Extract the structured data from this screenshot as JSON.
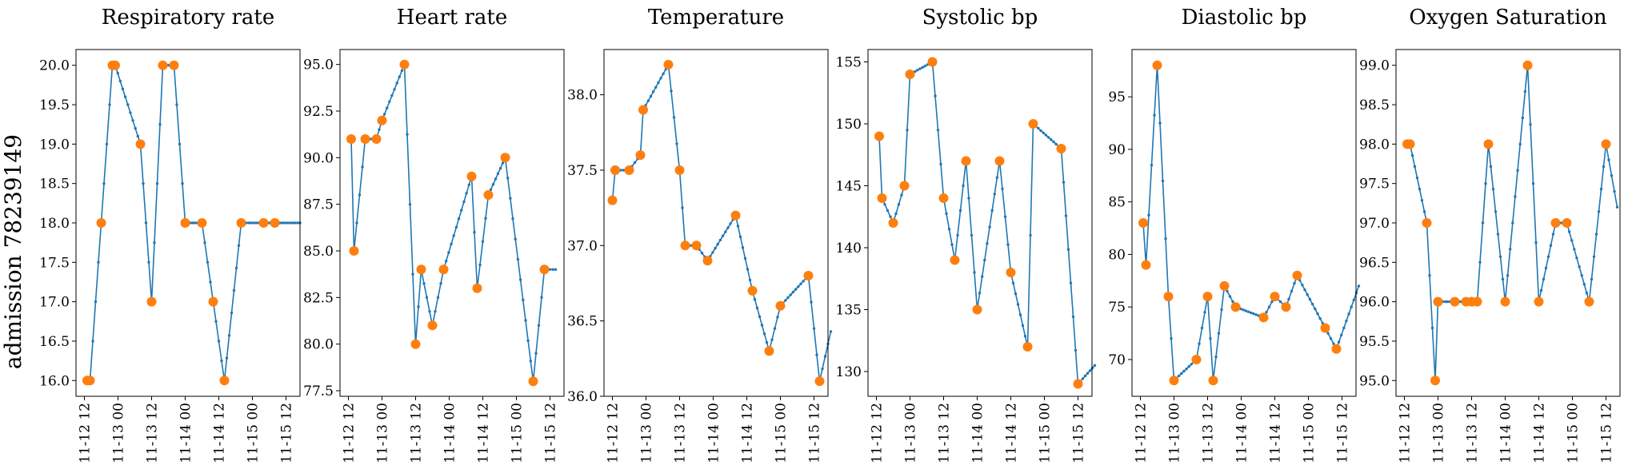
{
  "figure_ylabel": "admission 78239149",
  "colors": {
    "line": "#1f77b4",
    "marker": "#ff7f0e"
  },
  "x_ticks": [
    "11-12 12",
    "11-13 00",
    "11-13 12",
    "11-14 00",
    "11-14 12",
    "11-15 00",
    "11-15 12"
  ],
  "chart_data": [
    {
      "type": "line",
      "title": "Respiratory rate",
      "x_range": [
        "11-12 09:00",
        "11-15 17:00"
      ],
      "ylim": [
        15.8,
        20.2
      ],
      "y_ticks": [
        "16.0",
        "16.5",
        "17.0",
        "17.5",
        "18.0",
        "18.5",
        "19.0",
        "19.5",
        "20.0"
      ],
      "series": [
        {
          "x": [
            "11-12 13:00",
            "11-12 14:00",
            "11-12 18:00",
            "11-12 22:00",
            "11-12 23:00",
            "11-13 08:00",
            "11-13 12:00",
            "11-13 16:00",
            "11-13 20:00",
            "11-14 00:00",
            "11-14 06:00",
            "11-14 10:00",
            "11-14 14:00",
            "11-14 20:00",
            "11-15 04:00",
            "11-15 08:00",
            "11-15 17:00"
          ],
          "y": [
            16,
            16,
            18,
            20,
            20,
            19,
            17,
            20,
            20,
            18,
            18,
            17,
            16,
            18,
            18,
            18,
            18
          ],
          "marked": [
            true,
            true,
            true,
            true,
            true,
            true,
            true,
            true,
            true,
            true,
            true,
            true,
            true,
            true,
            true,
            true,
            false
          ]
        }
      ]
    },
    {
      "type": "line",
      "title": "Heart rate",
      "x_range": [
        "11-12 09:00",
        "11-15 17:00"
      ],
      "ylim": [
        77.2,
        95.8
      ],
      "y_ticks": [
        "77.5",
        "80.0",
        "82.5",
        "85.0",
        "87.5",
        "90.0",
        "92.5",
        "95.0"
      ],
      "series": [
        {
          "x": [
            "11-12 13:00",
            "11-12 14:00",
            "11-12 18:00",
            "11-12 22:00",
            "11-13 00:00",
            "11-13 08:00",
            "11-13 12:00",
            "11-13 14:00",
            "11-13 18:00",
            "11-13 22:00",
            "11-14 08:00",
            "11-14 10:00",
            "11-14 14:00",
            "11-14 20:00",
            "11-15 06:00",
            "11-15 10:00",
            "11-15 14:00"
          ],
          "y": [
            91,
            85,
            91,
            91,
            92,
            95,
            80,
            84,
            81,
            84,
            89,
            83,
            88,
            90,
            78,
            84,
            84
          ],
          "marked": [
            true,
            true,
            true,
            true,
            true,
            true,
            true,
            true,
            true,
            true,
            true,
            true,
            true,
            true,
            true,
            true,
            false
          ]
        }
      ]
    },
    {
      "type": "line",
      "title": "Temperature",
      "x_range": [
        "11-12 09:00",
        "11-15 17:00"
      ],
      "ylim": [
        36.0,
        38.3
      ],
      "y_ticks": [
        "36.0",
        "36.5",
        "37.0",
        "37.5",
        "38.0"
      ],
      "series": [
        {
          "x": [
            "11-12 12:00",
            "11-12 13:00",
            "11-12 18:00",
            "11-12 22:00",
            "11-12 23:00",
            "11-13 08:00",
            "11-13 12:00",
            "11-13 14:00",
            "11-13 18:00",
            "11-13 22:00",
            "11-14 08:00",
            "11-14 14:00",
            "11-14 20:00",
            "11-15 00:00",
            "11-15 10:00",
            "11-15 14:00",
            "11-15 18:00"
          ],
          "y": [
            37.3,
            37.5,
            37.5,
            37.6,
            37.9,
            38.2,
            37.5,
            37.0,
            37.0,
            36.9,
            37.2,
            36.7,
            36.3,
            36.6,
            36.8,
            36.1,
            36.43
          ],
          "marked": [
            true,
            true,
            true,
            true,
            true,
            true,
            true,
            true,
            true,
            true,
            true,
            true,
            true,
            true,
            true,
            true,
            false
          ]
        }
      ]
    },
    {
      "type": "line",
      "title": "Systolic bp",
      "x_range": [
        "11-12 09:00",
        "11-15 17:00"
      ],
      "ylim": [
        128,
        156
      ],
      "y_ticks": [
        "130",
        "135",
        "140",
        "145",
        "150",
        "155"
      ],
      "series": [
        {
          "x": [
            "11-12 13:00",
            "11-12 14:00",
            "11-12 18:00",
            "11-12 22:00",
            "11-13 00:00",
            "11-13 08:00",
            "11-13 12:00",
            "11-13 16:00",
            "11-13 20:00",
            "11-14 00:00",
            "11-14 08:00",
            "11-14 12:00",
            "11-14 18:00",
            "11-14 20:00",
            "11-15 06:00",
            "11-15 12:00",
            "11-15 18:00"
          ],
          "y": [
            149,
            144,
            142,
            145,
            154,
            155,
            144,
            139,
            147,
            135,
            147,
            138,
            132,
            150,
            148,
            129,
            130.5
          ],
          "marked": [
            true,
            true,
            true,
            true,
            true,
            true,
            true,
            true,
            true,
            true,
            true,
            true,
            true,
            true,
            true,
            true,
            false
          ]
        }
      ]
    },
    {
      "type": "line",
      "title": "Diastolic bp",
      "x_range": [
        "11-12 09:00",
        "11-15 17:00"
      ],
      "ylim": [
        66.5,
        99.5
      ],
      "y_ticks": [
        "70",
        "75",
        "80",
        "85",
        "90",
        "95"
      ],
      "series": [
        {
          "x": [
            "11-12 13:00",
            "11-12 14:00",
            "11-12 18:00",
            "11-12 22:00",
            "11-13 00:00",
            "11-13 08:00",
            "11-13 12:00",
            "11-13 14:00",
            "11-13 18:00",
            "11-13 22:00",
            "11-14 08:00",
            "11-14 12:00",
            "11-14 16:00",
            "11-14 20:00",
            "11-15 06:00",
            "11-15 10:00",
            "11-15 18:00"
          ],
          "y": [
            83,
            79,
            98,
            76,
            68,
            70,
            76,
            68,
            77,
            75,
            74,
            76,
            75,
            78,
            73,
            71,
            77
          ],
          "marked": [
            true,
            true,
            true,
            true,
            true,
            true,
            true,
            true,
            true,
            true,
            true,
            true,
            true,
            true,
            true,
            true,
            false
          ]
        }
      ]
    },
    {
      "type": "line",
      "title": "Oxygen Saturation",
      "x_range": [
        "11-12 09:00",
        "11-15 17:00"
      ],
      "ylim": [
        94.8,
        99.2
      ],
      "y_ticks": [
        "95.0",
        "95.5",
        "96.0",
        "96.5",
        "97.0",
        "97.5",
        "98.0",
        "98.5",
        "99.0"
      ],
      "series": [
        {
          "x": [
            "11-12 13:00",
            "11-12 14:00",
            "11-12 20:00",
            "11-12 23:00",
            "11-13 00:00",
            "11-13 06:00",
            "11-13 10:00",
            "11-13 12:00",
            "11-13 14:00",
            "11-13 18:00",
            "11-14 00:00",
            "11-14 08:00",
            "11-14 12:00",
            "11-14 18:00",
            "11-14 22:00",
            "11-15 06:00",
            "11-15 12:00",
            "11-15 16:00"
          ],
          "y": [
            98,
            98,
            97,
            95,
            96,
            96,
            96,
            96,
            96,
            98,
            96,
            99,
            96,
            97,
            97,
            96,
            98,
            97.2
          ],
          "marked": [
            true,
            true,
            true,
            true,
            true,
            true,
            true,
            true,
            true,
            true,
            true,
            true,
            true,
            true,
            true,
            true,
            true,
            false
          ]
        }
      ]
    }
  ]
}
